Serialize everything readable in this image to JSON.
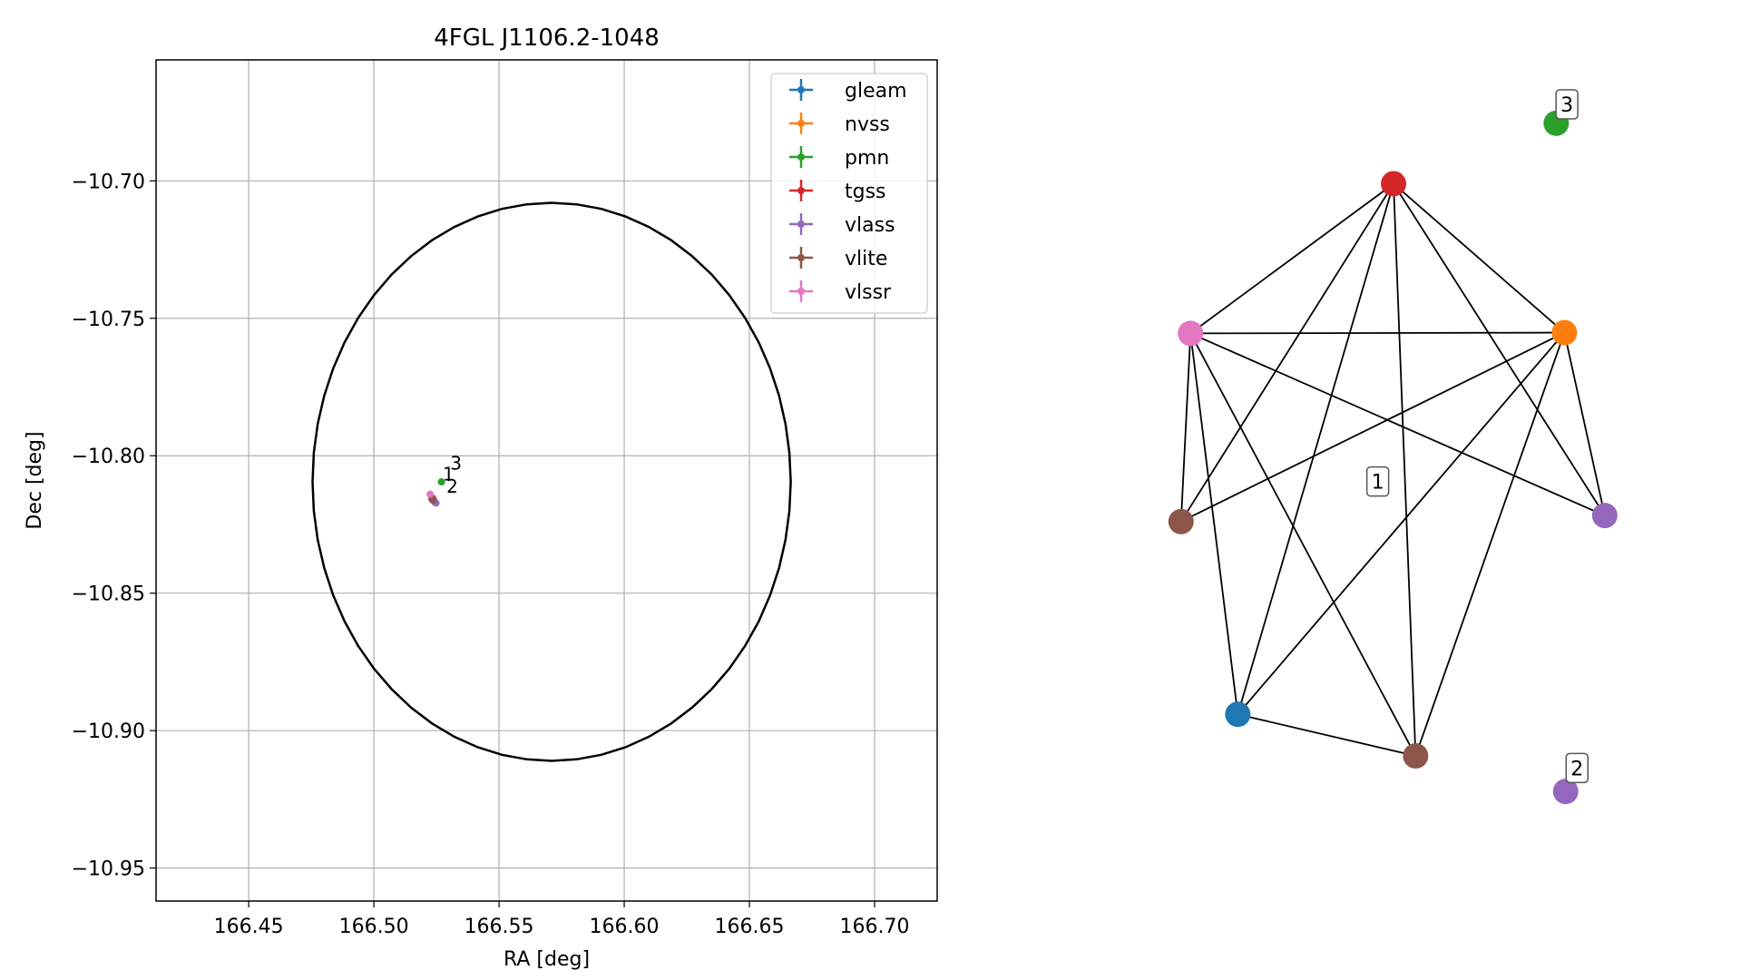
{
  "chart_data": [
    {
      "type": "scatter",
      "title": "4FGL J1106.2-1048",
      "xlabel": "RA [deg]",
      "ylabel": "Dec [deg]",
      "xlim": [
        166.413,
        166.725
      ],
      "ylim": [
        -10.962,
        -10.656
      ],
      "xticks": [
        166.45,
        166.5,
        166.55,
        166.6,
        166.65,
        166.7
      ],
      "xtick_labels": [
        "166.45",
        "166.50",
        "166.55",
        "166.60",
        "166.65",
        "166.70"
      ],
      "yticks": [
        -10.7,
        -10.75,
        -10.8,
        -10.85,
        -10.9,
        -10.95
      ],
      "ytick_labels": [
        "−10.70",
        "−10.75",
        "−10.80",
        "−10.85",
        "−10.90",
        "−10.95"
      ],
      "grid": true,
      "legend_position": "top-right",
      "ellipse": {
        "ra_center": 166.571,
        "dec_center": -10.8095,
        "semi_axis_ra": 0.0955,
        "semi_axis_dec": 0.1015,
        "color": "#000000"
      },
      "series": [
        {
          "name": "gleam",
          "color": "#1f77b4",
          "points": [
            [
              166.5245,
              -10.817
            ]
          ]
        },
        {
          "name": "nvss",
          "color": "#ff7f0e",
          "points": [
            [
              166.5238,
              -10.816
            ]
          ]
        },
        {
          "name": "pmn",
          "color": "#2ca02c",
          "points": [
            [
              166.527,
              -10.8095
            ]
          ]
        },
        {
          "name": "tgss",
          "color": "#d62728",
          "points": [
            [
              166.5235,
              -10.8155
            ]
          ]
        },
        {
          "name": "vlass",
          "color": "#9467bd",
          "points": [
            [
              166.5248,
              -10.8172
            ],
            [
              166.524,
              -10.8165
            ]
          ]
        },
        {
          "name": "vlite",
          "color": "#8c564b",
          "points": [
            [
              166.5232,
              -10.8158
            ],
            [
              166.5236,
              -10.8162
            ]
          ]
        },
        {
          "name": "vlssr",
          "color": "#e377c2",
          "points": [
            [
              166.5225,
              -10.814
            ]
          ]
        }
      ],
      "annotations": [
        {
          "text": "3",
          "ra": 166.5305,
          "dec": -10.805
        },
        {
          "text": "1",
          "ra": 166.5275,
          "dec": -10.809
        },
        {
          "text": "2",
          "ra": 166.529,
          "dec": -10.8135
        }
      ]
    },
    {
      "type": "network",
      "nodes": [
        {
          "id": "red",
          "color": "#d62728",
          "x": 0.577,
          "y": 0.895
        },
        {
          "id": "orange",
          "color": "#ff7f0e",
          "x": 0.848,
          "y": 0.698
        },
        {
          "id": "pink",
          "color": "#e377c2",
          "x": 0.255,
          "y": 0.697
        },
        {
          "id": "brown-top",
          "color": "#8c564b",
          "x": 0.24,
          "y": 0.448
        },
        {
          "id": "purple",
          "color": "#9467bd",
          "x": 0.912,
          "y": 0.456
        },
        {
          "id": "blue",
          "color": "#1f77b4",
          "x": 0.33,
          "y": 0.193
        },
        {
          "id": "brown-bot",
          "color": "#8c564b",
          "x": 0.612,
          "y": 0.138
        },
        {
          "id": "green",
          "color": "#2ca02c",
          "x": 0.835,
          "y": 0.975
        },
        {
          "id": "purple-2",
          "color": "#9467bd",
          "x": 0.85,
          "y": 0.091
        }
      ],
      "edges": [
        [
          "red",
          "pink"
        ],
        [
          "red",
          "orange"
        ],
        [
          "red",
          "brown-top"
        ],
        [
          "red",
          "blue"
        ],
        [
          "red",
          "brown-bot"
        ],
        [
          "red",
          "purple"
        ],
        [
          "pink",
          "orange"
        ],
        [
          "pink",
          "brown-top"
        ],
        [
          "pink",
          "blue"
        ],
        [
          "pink",
          "brown-bot"
        ],
        [
          "pink",
          "purple"
        ],
        [
          "orange",
          "brown-top"
        ],
        [
          "orange",
          "blue"
        ],
        [
          "orange",
          "brown-bot"
        ],
        [
          "orange",
          "purple"
        ],
        [
          "blue",
          "brown-bot"
        ]
      ],
      "component_labels": [
        {
          "text": "1",
          "x": 0.552,
          "y": 0.501
        },
        {
          "text": "3",
          "x": 0.852,
          "y": 1.0
        },
        {
          "text": "2",
          "x": 0.868,
          "y": 0.122
        }
      ]
    }
  ]
}
